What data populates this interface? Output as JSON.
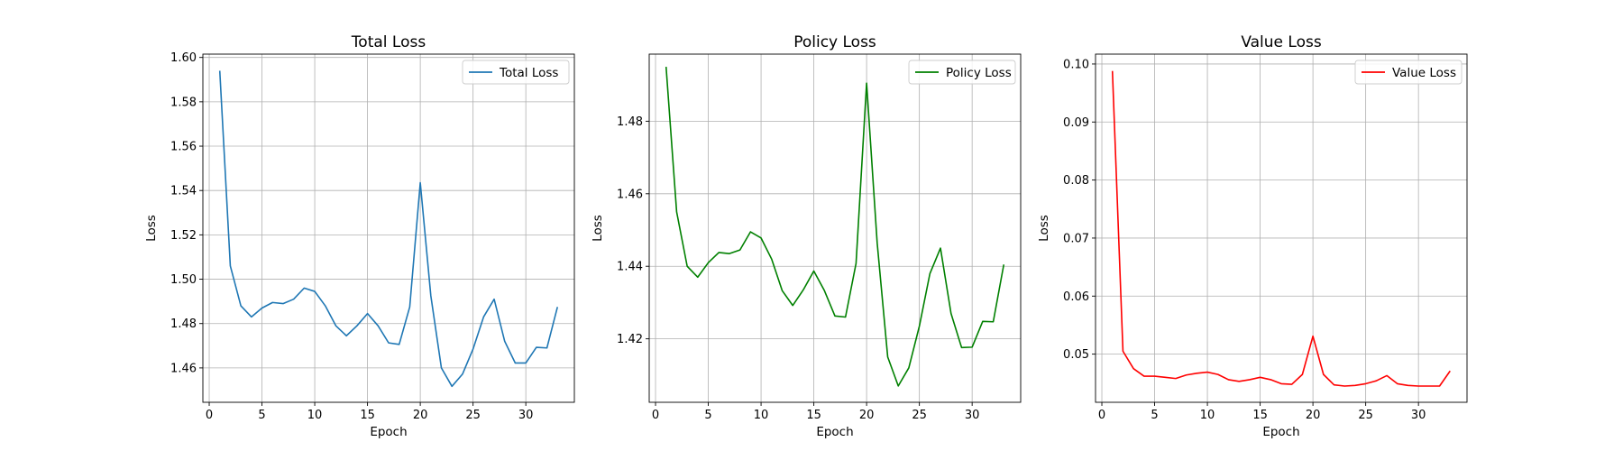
{
  "chart_data": [
    {
      "type": "line",
      "title": "Total Loss",
      "xlabel": "Epoch",
      "ylabel": "Loss",
      "xlim": [
        -0.6,
        34.6
      ],
      "ylim": [
        1.4445,
        1.6015
      ],
      "xticks": [
        0,
        5,
        10,
        15,
        20,
        25,
        30
      ],
      "yticks": [
        1.46,
        1.48,
        1.5,
        1.52,
        1.54,
        1.56,
        1.58,
        1.6
      ],
      "ytick_labels": [
        "1.46",
        "1.48",
        "1.50",
        "1.52",
        "1.54",
        "1.56",
        "1.58",
        "1.60"
      ],
      "grid": true,
      "legend_position": "top-right",
      "series": [
        {
          "name": "Total Loss",
          "color": "#1f77b4",
          "x": [
            1,
            2,
            3,
            4,
            5,
            6,
            7,
            8,
            9,
            10,
            11,
            12,
            13,
            14,
            15,
            16,
            17,
            18,
            19,
            20,
            21,
            22,
            23,
            24,
            25,
            26,
            27,
            28,
            29,
            30,
            31,
            32,
            33
          ],
          "y": [
            1.594,
            1.506,
            1.488,
            1.483,
            1.487,
            1.4895,
            1.489,
            1.491,
            1.496,
            1.4945,
            1.488,
            1.479,
            1.4745,
            1.479,
            1.4845,
            1.479,
            1.4713,
            1.4706,
            1.4875,
            1.5435,
            1.4925,
            1.46,
            1.4517,
            1.4572,
            1.4685,
            1.483,
            1.491,
            1.472,
            1.4622,
            1.4622,
            1.4693,
            1.469,
            1.4875
          ]
        }
      ]
    },
    {
      "type": "line",
      "title": "Policy Loss",
      "xlabel": "Epoch",
      "ylabel": "Loss",
      "xlim": [
        -0.6,
        34.6
      ],
      "ylim": [
        1.4025,
        1.4985
      ],
      "xticks": [
        0,
        5,
        10,
        15,
        20,
        25,
        30
      ],
      "yticks": [
        1.42,
        1.44,
        1.46,
        1.48
      ],
      "ytick_labels": [
        "1.42",
        "1.44",
        "1.46",
        "1.48"
      ],
      "grid": true,
      "legend_position": "top-right",
      "series": [
        {
          "name": "Policy Loss",
          "color": "#008000",
          "x": [
            1,
            2,
            3,
            4,
            5,
            6,
            7,
            8,
            9,
            10,
            11,
            12,
            13,
            14,
            15,
            16,
            17,
            18,
            19,
            20,
            21,
            22,
            23,
            24,
            25,
            26,
            27,
            28,
            29,
            30,
            31,
            32,
            33
          ],
          "y": [
            1.495,
            1.455,
            1.44,
            1.437,
            1.441,
            1.4438,
            1.4435,
            1.4445,
            1.4495,
            1.4478,
            1.442,
            1.4333,
            1.4292,
            1.4335,
            1.4387,
            1.4333,
            1.4263,
            1.426,
            1.4408,
            1.4905,
            1.4465,
            1.415,
            1.407,
            1.412,
            1.4235,
            1.438,
            1.445,
            1.427,
            1.4176,
            1.4177,
            1.4248,
            1.4247,
            1.4405
          ]
        }
      ]
    },
    {
      "type": "line",
      "title": "Value Loss",
      "xlabel": "Epoch",
      "ylabel": "Loss",
      "xlim": [
        -0.6,
        34.6
      ],
      "ylim": [
        0.0417,
        0.1017
      ],
      "xticks": [
        0,
        5,
        10,
        15,
        20,
        25,
        30
      ],
      "yticks": [
        0.05,
        0.06,
        0.07,
        0.08,
        0.09,
        0.1
      ],
      "ytick_labels": [
        "0.05",
        "0.06",
        "0.07",
        "0.08",
        "0.09",
        "0.10"
      ],
      "grid": true,
      "legend_position": "top-right",
      "series": [
        {
          "name": "Value Loss",
          "color": "#ff0000",
          "x": [
            1,
            2,
            3,
            4,
            5,
            6,
            7,
            8,
            9,
            10,
            11,
            12,
            13,
            14,
            15,
            16,
            17,
            18,
            19,
            20,
            21,
            22,
            23,
            24,
            25,
            26,
            27,
            28,
            29,
            30,
            31,
            32,
            33
          ],
          "y": [
            0.0988,
            0.0505,
            0.0475,
            0.0462,
            0.0462,
            0.046,
            0.0458,
            0.0464,
            0.0467,
            0.0469,
            0.0465,
            0.0456,
            0.0453,
            0.0456,
            0.046,
            0.0456,
            0.0449,
            0.0448,
            0.0465,
            0.0531,
            0.0465,
            0.0447,
            0.0445,
            0.0446,
            0.0449,
            0.0454,
            0.0463,
            0.0449,
            0.0446,
            0.0445,
            0.0445,
            0.0445,
            0.0471
          ]
        }
      ]
    }
  ]
}
